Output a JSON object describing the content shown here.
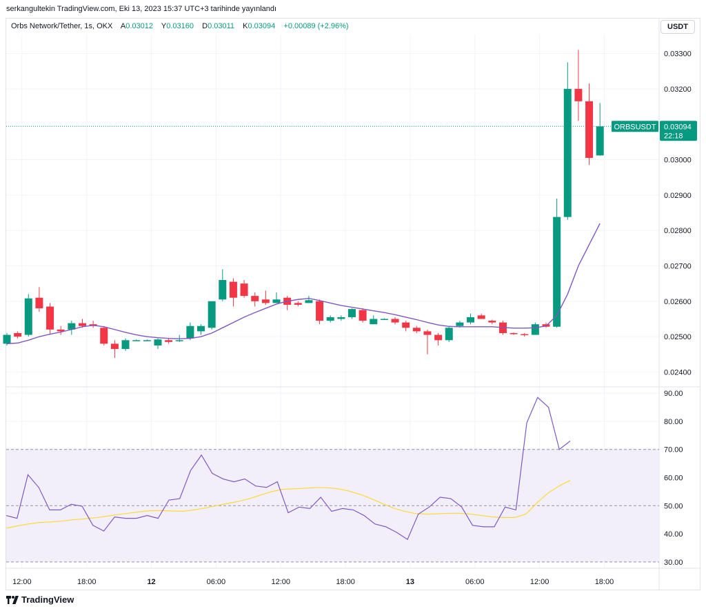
{
  "header": {
    "published": "serkangultekin TradingView.com, Eki 13, 2023 15:37 UTC+3 tarihinde yayınlandı",
    "symbol": "Orbs Network/Tether, 1s, OKX",
    "ohlc": [
      {
        "key": "A",
        "value": "0.03012"
      },
      {
        "key": "Y",
        "value": "0.03160"
      },
      {
        "key": "D",
        "value": "0.03011"
      },
      {
        "key": "K",
        "value": "0.03094"
      }
    ],
    "change": "+0.00089 (+2.96%)",
    "currency_button": "USDT"
  },
  "price_tag": {
    "symbol": "ORBSUSDT",
    "price": "0.03094",
    "countdown": "22:18"
  },
  "footer": {
    "brand": "TradingView"
  },
  "colors": {
    "up": "#089981",
    "down": "#f23645",
    "ma": "#7e57c2",
    "rsi": "#7e57c2",
    "rsi_ma": "#fdd835",
    "band_fill": "#f3effa"
  },
  "chart_data": [
    {
      "type": "candlestick",
      "title": "Orbs Network/Tether, 1s, OKX",
      "y_ticks": [
        "0.03300",
        "0.03200",
        "0.03000",
        "0.02900",
        "0.02800",
        "0.02700",
        "0.02600",
        "0.02500",
        "0.02400"
      ],
      "ylim": [
        0.0236,
        0.0334
      ],
      "x_ticks": [
        {
          "label": "12:00",
          "pos": 1.4
        },
        {
          "label": "18:00",
          "pos": 7.4
        },
        {
          "label": "12",
          "pos": 13.4,
          "bold": true
        },
        {
          "label": "06:00",
          "pos": 19.4
        },
        {
          "label": "12:00",
          "pos": 25.4
        },
        {
          "label": "18:00",
          "pos": 31.4
        },
        {
          "label": "13",
          "pos": 37.4,
          "bold": true
        },
        {
          "label": "06:00",
          "pos": 43.4
        },
        {
          "label": "12:00",
          "pos": 49.4
        },
        {
          "label": "18:00",
          "pos": 55.4
        }
      ],
      "candles": [
        {
          "o": 0.0248,
          "h": 0.0251,
          "l": 0.02475,
          "c": 0.02505
        },
        {
          "o": 0.0251,
          "h": 0.02515,
          "l": 0.02495,
          "c": 0.025
        },
        {
          "o": 0.02505,
          "h": 0.0262,
          "l": 0.025,
          "c": 0.02608
        },
        {
          "o": 0.0261,
          "h": 0.0264,
          "l": 0.0257,
          "c": 0.0258
        },
        {
          "o": 0.02585,
          "h": 0.02595,
          "l": 0.02505,
          "c": 0.0252
        },
        {
          "o": 0.0252,
          "h": 0.0253,
          "l": 0.02505,
          "c": 0.02515
        },
        {
          "o": 0.0252,
          "h": 0.02545,
          "l": 0.02505,
          "c": 0.02538
        },
        {
          "o": 0.02538,
          "h": 0.0255,
          "l": 0.02525,
          "c": 0.0253
        },
        {
          "o": 0.02535,
          "h": 0.02545,
          "l": 0.02525,
          "c": 0.0253
        },
        {
          "o": 0.02525,
          "h": 0.0253,
          "l": 0.02475,
          "c": 0.0248
        },
        {
          "o": 0.0248,
          "h": 0.0249,
          "l": 0.0244,
          "c": 0.02465
        },
        {
          "o": 0.02465,
          "h": 0.02495,
          "l": 0.0246,
          "c": 0.0249
        },
        {
          "o": 0.0249,
          "h": 0.02492,
          "l": 0.02488,
          "c": 0.0249
        },
        {
          "o": 0.0249,
          "h": 0.02492,
          "l": 0.02488,
          "c": 0.0249
        },
        {
          "o": 0.02475,
          "h": 0.02495,
          "l": 0.02465,
          "c": 0.02492
        },
        {
          "o": 0.0249,
          "h": 0.02495,
          "l": 0.0248,
          "c": 0.02485
        },
        {
          "o": 0.0249,
          "h": 0.02505,
          "l": 0.02485,
          "c": 0.0249
        },
        {
          "o": 0.02495,
          "h": 0.0254,
          "l": 0.0249,
          "c": 0.0253
        },
        {
          "o": 0.02515,
          "h": 0.02535,
          "l": 0.02505,
          "c": 0.0253
        },
        {
          "o": 0.02525,
          "h": 0.026,
          "l": 0.0252,
          "c": 0.026
        },
        {
          "o": 0.02605,
          "h": 0.0269,
          "l": 0.026,
          "c": 0.0266
        },
        {
          "o": 0.02655,
          "h": 0.02665,
          "l": 0.02585,
          "c": 0.0261
        },
        {
          "o": 0.0265,
          "h": 0.0266,
          "l": 0.0261,
          "c": 0.02615
        },
        {
          "o": 0.02615,
          "h": 0.02625,
          "l": 0.02585,
          "c": 0.026
        },
        {
          "o": 0.02605,
          "h": 0.0263,
          "l": 0.0259,
          "c": 0.02595
        },
        {
          "o": 0.02595,
          "h": 0.02625,
          "l": 0.02595,
          "c": 0.02605
        },
        {
          "o": 0.0261,
          "h": 0.02615,
          "l": 0.02575,
          "c": 0.0259
        },
        {
          "o": 0.02595,
          "h": 0.026,
          "l": 0.02585,
          "c": 0.0259
        },
        {
          "o": 0.02595,
          "h": 0.02615,
          "l": 0.02595,
          "c": 0.02603
        },
        {
          "o": 0.026,
          "h": 0.02605,
          "l": 0.02535,
          "c": 0.02545
        },
        {
          "o": 0.02545,
          "h": 0.0256,
          "l": 0.0254,
          "c": 0.02555
        },
        {
          "o": 0.0255,
          "h": 0.0256,
          "l": 0.02545,
          "c": 0.02555
        },
        {
          "o": 0.02555,
          "h": 0.0258,
          "l": 0.0255,
          "c": 0.02578
        },
        {
          "o": 0.02575,
          "h": 0.0258,
          "l": 0.0254,
          "c": 0.02545
        },
        {
          "o": 0.02535,
          "h": 0.0256,
          "l": 0.02535,
          "c": 0.0255
        },
        {
          "o": 0.0255,
          "h": 0.02552,
          "l": 0.02548,
          "c": 0.0255
        },
        {
          "o": 0.0255,
          "h": 0.02555,
          "l": 0.02535,
          "c": 0.0254
        },
        {
          "o": 0.0254,
          "h": 0.02545,
          "l": 0.02515,
          "c": 0.02525
        },
        {
          "o": 0.02525,
          "h": 0.0253,
          "l": 0.0251,
          "c": 0.02515
        },
        {
          "o": 0.02515,
          "h": 0.0252,
          "l": 0.0245,
          "c": 0.02505
        },
        {
          "o": 0.02505,
          "h": 0.0251,
          "l": 0.02475,
          "c": 0.0249
        },
        {
          "o": 0.0249,
          "h": 0.0253,
          "l": 0.02485,
          "c": 0.02525
        },
        {
          "o": 0.0253,
          "h": 0.02545,
          "l": 0.02525,
          "c": 0.0254
        },
        {
          "o": 0.0254,
          "h": 0.02565,
          "l": 0.02535,
          "c": 0.02555
        },
        {
          "o": 0.0256,
          "h": 0.02565,
          "l": 0.0255,
          "c": 0.0255
        },
        {
          "o": 0.02545,
          "h": 0.02548,
          "l": 0.02535,
          "c": 0.0254
        },
        {
          "o": 0.0254,
          "h": 0.02545,
          "l": 0.02505,
          "c": 0.0251
        },
        {
          "o": 0.0251,
          "h": 0.02512,
          "l": 0.02505,
          "c": 0.02507
        },
        {
          "o": 0.02507,
          "h": 0.0251,
          "l": 0.025,
          "c": 0.02505
        },
        {
          "o": 0.02505,
          "h": 0.0254,
          "l": 0.02505,
          "c": 0.02535
        },
        {
          "o": 0.02535,
          "h": 0.0254,
          "l": 0.02525,
          "c": 0.02528
        },
        {
          "o": 0.02528,
          "h": 0.0289,
          "l": 0.02525,
          "c": 0.02838
        },
        {
          "o": 0.02838,
          "h": 0.03275,
          "l": 0.0283,
          "c": 0.032
        },
        {
          "o": 0.032,
          "h": 0.0331,
          "l": 0.0311,
          "c": 0.03165
        },
        {
          "o": 0.03165,
          "h": 0.03215,
          "l": 0.02985,
          "c": 0.03005
        },
        {
          "o": 0.03012,
          "h": 0.0316,
          "l": 0.03011,
          "c": 0.03094
        }
      ],
      "ma": [
        0.0248,
        0.02482,
        0.0249,
        0.025,
        0.02507,
        0.02513,
        0.0252,
        0.02528,
        0.02532,
        0.02528,
        0.0252,
        0.02512,
        0.02505,
        0.025,
        0.02497,
        0.02495,
        0.02494,
        0.02495,
        0.025,
        0.0251,
        0.02525,
        0.0254,
        0.02555,
        0.02568,
        0.0258,
        0.02592,
        0.026,
        0.02605,
        0.02608,
        0.02602,
        0.02595,
        0.02588,
        0.02583,
        0.02578,
        0.02573,
        0.02568,
        0.02562,
        0.02555,
        0.02548,
        0.0254,
        0.02533,
        0.02529,
        0.02528,
        0.02528,
        0.02528,
        0.02528,
        0.02526,
        0.02524,
        0.02524,
        0.02525,
        0.0253,
        0.0256,
        0.0262,
        0.027,
        0.0276,
        0.0282
      ],
      "last_price": 0.03094
    },
    {
      "type": "line",
      "y_ticks": [
        "90.00",
        "80.00",
        "70.00",
        "60.00",
        "50.00",
        "40.00",
        "30.00"
      ],
      "ylim": [
        28,
        92
      ],
      "band": [
        30,
        70
      ],
      "midline": 50,
      "series": [
        {
          "values": [
            46.5,
            45.5,
            61,
            56.5,
            48.5,
            48.5,
            50.5,
            49.8,
            43,
            41,
            46,
            45.5,
            45.5,
            46.5,
            45.5,
            52,
            52.5,
            62.5,
            68,
            61.5,
            59.5,
            58.5,
            59.5,
            57,
            56.5,
            58.5,
            47.5,
            49.5,
            49,
            53,
            48,
            49,
            48.5,
            46.5,
            43.5,
            42.5,
            40.5,
            38,
            47,
            49.5,
            53,
            52.5,
            49.5,
            43,
            42.5,
            42.5,
            49.5,
            48.5,
            79.5,
            88.5,
            85,
            70,
            73
          ]
        },
        {
          "values": [
            42,
            42.8,
            43.5,
            44,
            44.2,
            44.5,
            45,
            45.3,
            45.7,
            46.2,
            46.8,
            47.3,
            47.8,
            48.2,
            48.3,
            48.1,
            48,
            48.5,
            49.2,
            50,
            50.8,
            51.5,
            52.5,
            53.8,
            55,
            55.8,
            56,
            56.2,
            56.4,
            56.4,
            56,
            55.2,
            54,
            52.5,
            50.8,
            49.2,
            48,
            47.2,
            47,
            47.1,
            47.3,
            47.3,
            47,
            46.5,
            46,
            45.8,
            45.8,
            47,
            51,
            54.5,
            57,
            59
          ]
        }
      ]
    }
  ]
}
